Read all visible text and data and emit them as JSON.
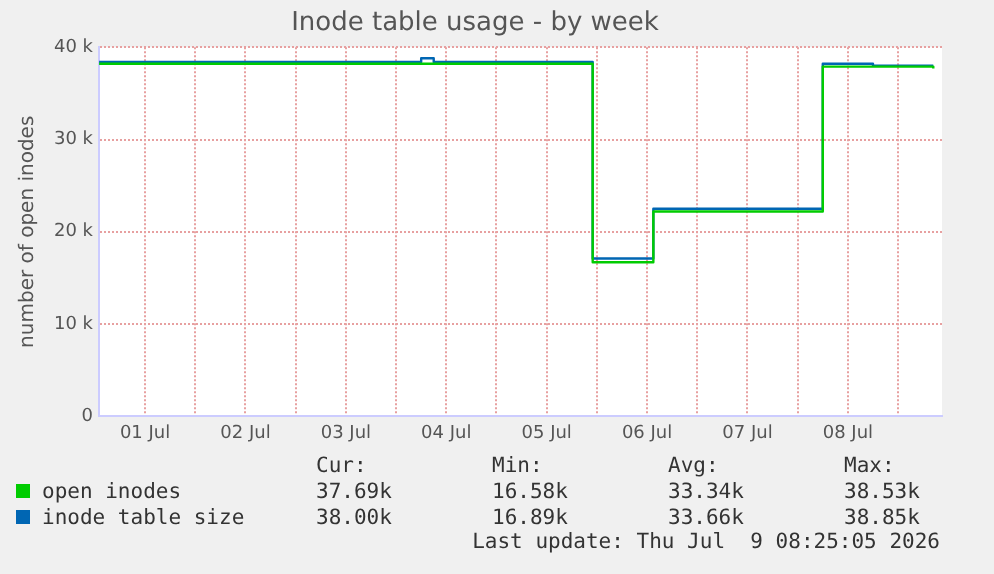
{
  "chart_data": {
    "type": "step",
    "title": "Inode table usage - by week",
    "ylabel": "number of open inodes",
    "xlim": [
      "2026-07-01T01:00",
      "2026-07-09T10:30"
    ],
    "xticks": [
      {
        "value": "2026-07-01T12:00",
        "label": "01 Jul"
      },
      {
        "value": "2026-07-02T00:00",
        "label": null
      },
      {
        "value": "2026-07-02T12:00",
        "label": "02 Jul"
      },
      {
        "value": "2026-07-03T00:00",
        "label": null
      },
      {
        "value": "2026-07-03T12:00",
        "label": "03 Jul"
      },
      {
        "value": "2026-07-04T00:00",
        "label": null
      },
      {
        "value": "2026-07-04T12:00",
        "label": "04 Jul"
      },
      {
        "value": "2026-07-05T00:00",
        "label": null
      },
      {
        "value": "2026-07-05T12:00",
        "label": "05 Jul"
      },
      {
        "value": "2026-07-06T00:00",
        "label": null
      },
      {
        "value": "2026-07-06T12:00",
        "label": "06 Jul"
      },
      {
        "value": "2026-07-07T00:00",
        "label": null
      },
      {
        "value": "2026-07-07T12:00",
        "label": "07 Jul"
      },
      {
        "value": "2026-07-08T00:00",
        "label": null
      },
      {
        "value": "2026-07-08T12:00",
        "label": "08 Jul"
      },
      {
        "value": "2026-07-09T00:00",
        "label": null
      }
    ],
    "ylim": [
      0,
      40000
    ],
    "yticks": [
      0,
      {
        "value": 10000,
        "label": "10 k"
      },
      {
        "value": 20000,
        "label": "20 k"
      },
      {
        "value": 30000,
        "label": "30 k"
      },
      {
        "value": 40000,
        "label": "40 k"
      }
    ],
    "grid": true,
    "legend": "bottom left",
    "series": [
      {
        "name": "open inodes",
        "color": "#00cc00",
        "x": [
          "2026-07-01T01:00",
          "2026-07-05T23:00",
          "2026-07-06T13:30",
          "2026-07-08T06:00",
          "2026-07-09T08:25"
        ],
        "values": [
          38200,
          16700,
          22200,
          37900,
          37690
        ]
      },
      {
        "name": "inode table size",
        "color": "#0066b3",
        "x": [
          "2026-07-01T01:00",
          "2026-07-04T06:00",
          "2026-07-04T09:00",
          "2026-07-05T23:00",
          "2026-07-06T13:30",
          "2026-07-08T06:00",
          "2026-07-08T18:00",
          "2026-07-09T08:25"
        ],
        "values": [
          38400,
          38800,
          38400,
          17100,
          22500,
          38200,
          38000,
          38000
        ]
      }
    ],
    "annotations": [
      "Cur:",
      "Min:",
      "Avg:",
      "Max:",
      "37.69k",
      "16.58k",
      "33.34k",
      "38.53k",
      "38.00k",
      "16.89k",
      "33.66k",
      "38.85k",
      "Last update: Thu Jul  9 08:25:05 2026"
    ]
  }
}
